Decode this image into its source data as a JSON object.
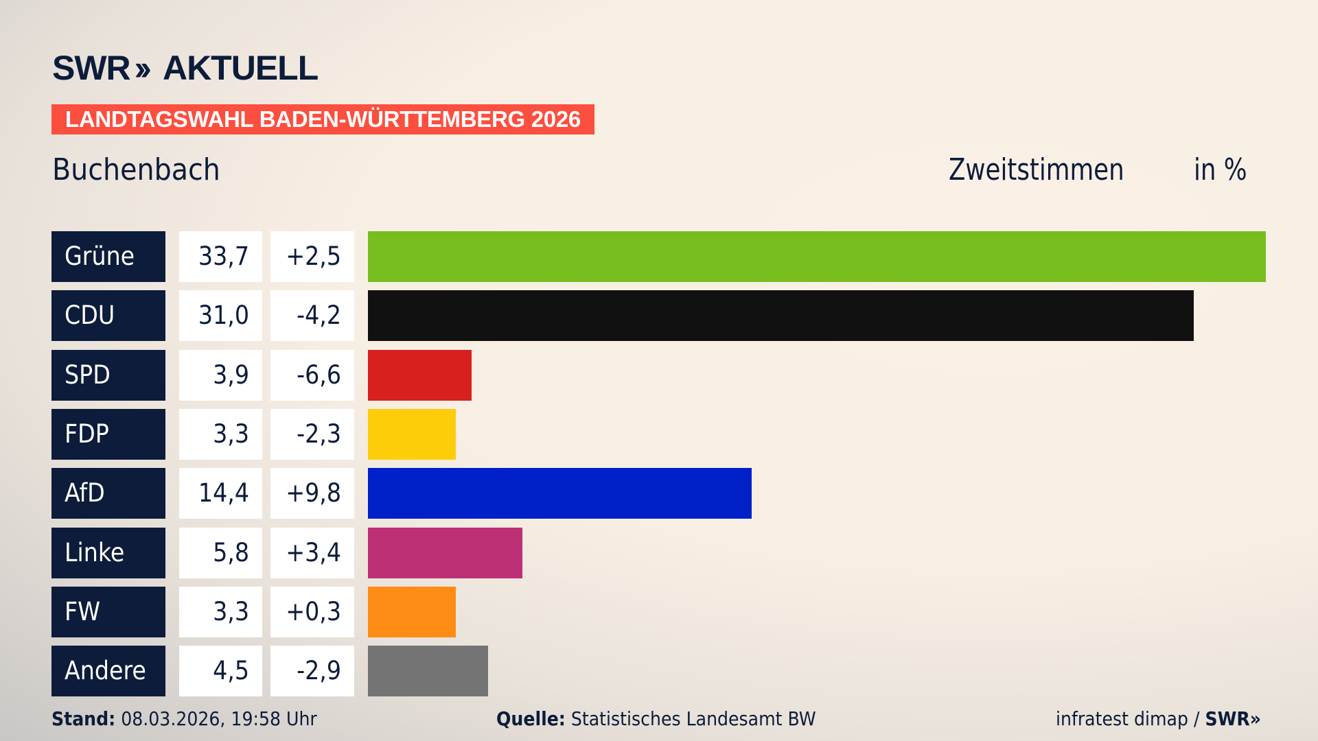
{
  "header": {
    "logo": "SWR AKTUELL",
    "logo_left": "SWR",
    "logo_right": "AKTUELL",
    "banner": "LANDTAGSWAHL BADEN-WÜRTTEMBERG 2026",
    "place": "Buchenbach",
    "vote_type": "Zweitstimmen",
    "unit": "in %"
  },
  "colors": {
    "banner": "#fc4f3f",
    "label_bg": "#0c1c3a"
  },
  "chart_data": {
    "type": "bar",
    "orientation": "horizontal",
    "categories": [
      "Grüne",
      "CDU",
      "SPD",
      "FDP",
      "AfD",
      "Linke",
      "FW",
      "Andere"
    ],
    "values": [
      33.7,
      31.0,
      3.9,
      3.3,
      14.4,
      5.8,
      3.3,
      4.5
    ],
    "value_labels": [
      "33,7",
      "31,0",
      "3,9",
      "3,3",
      "14,4",
      "5,8",
      "3,3",
      "4,5"
    ],
    "change_labels": [
      "+2,5",
      "-4,2",
      "-6,6",
      "-2,3",
      "+9,8",
      "+3,4",
      "+0,3",
      "-2,9"
    ],
    "changes": [
      2.5,
      -4.2,
      -6.6,
      -2.3,
      9.8,
      3.4,
      0.3,
      -2.9
    ],
    "colors": [
      "#78bd1e",
      "#111111",
      "#d8201e",
      "#fecd0a",
      "#0021c8",
      "#bd3075",
      "#fc8c14",
      "#747474"
    ]
  },
  "footer": {
    "stand_label": "Stand:",
    "stand_value": "08.03.2026, 19:58 Uhr",
    "source_label": "Quelle:",
    "source_value": "Statistisches Landesamt BW",
    "credit": "infratest dimap /",
    "credit_logo": "SWR"
  }
}
